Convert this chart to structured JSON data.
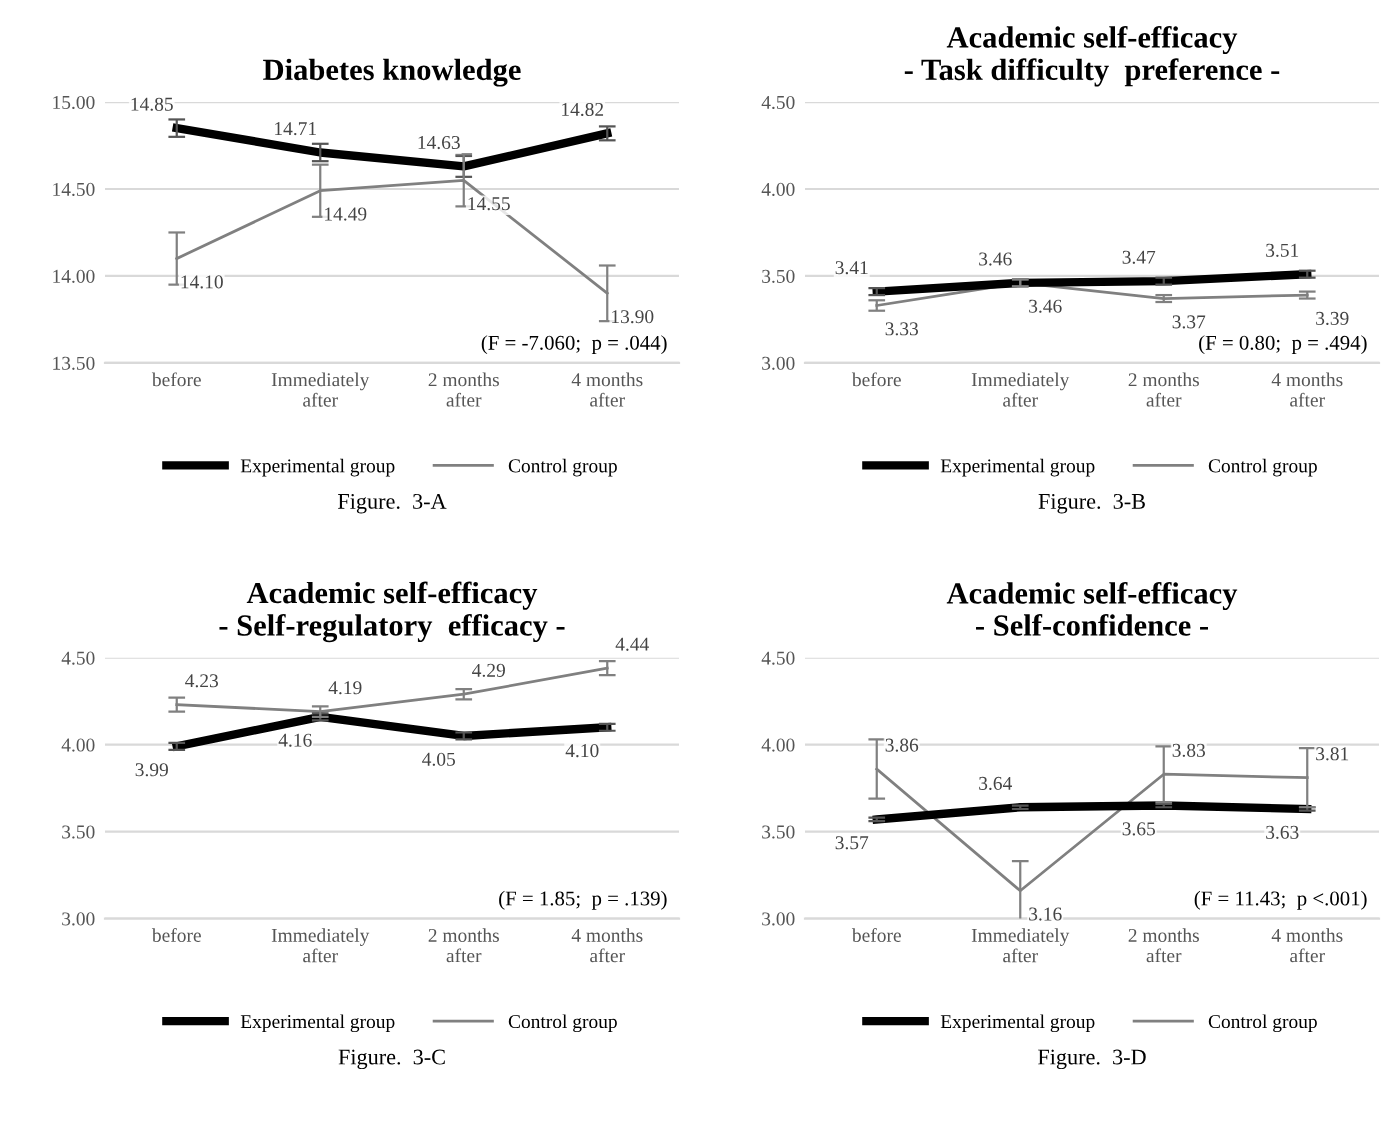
{
  "chart_data": [
    {
      "type": "line",
      "title": "Diabetes knowledge",
      "categories": [
        "before",
        "Immediately\nafter",
        "2 months\nafter",
        "4 months\nafter"
      ],
      "series": [
        {
          "name": "Experimental group",
          "color": "#000000",
          "values": [
            14.85,
            14.71,
            14.63,
            14.82
          ],
          "value_labels": [
            "14.85",
            "14.71",
            "14.63",
            "14.82"
          ],
          "errors": [
            0.05,
            0.05,
            0.06,
            0.04
          ]
        },
        {
          "name": "Control group",
          "color": "#808080",
          "values": [
            14.1,
            14.49,
            14.55,
            13.9
          ],
          "value_labels": [
            "14.10",
            "14.49",
            "14.55",
            "13.90"
          ],
          "errors": [
            0.15,
            0.15,
            0.15,
            0.16
          ]
        }
      ],
      "ylim": [
        13.5,
        15.0
      ],
      "yticks": [
        {
          "value": 13.5,
          "label": "13.50"
        },
        {
          "value": 14.0,
          "label": "14.00"
        },
        {
          "value": 14.5,
          "label": "14.50"
        },
        {
          "value": 15.0,
          "label": "15.00"
        }
      ],
      "grid": "y",
      "legend": "bottom",
      "marker": "none",
      "line_style": "solid",
      "annotations": [
        "(F = -7.060;  p = .044)",
        "Figure.  3-A"
      ]
    },
    {
      "type": "line",
      "title": "Academic self-efficacy",
      "subtitle": "- Task difficulty  preference -",
      "categories": [
        "before",
        "Immediately\nafter",
        "2 months\nafter",
        "4 months\nafter"
      ],
      "series": [
        {
          "name": "Experimental group",
          "color": "#000000",
          "values": [
            3.41,
            3.46,
            3.47,
            3.51
          ],
          "value_labels": [
            "3.41",
            "3.46",
            "3.47",
            "3.51"
          ],
          "errors": [
            0.02,
            0.02,
            0.02,
            0.02
          ]
        },
        {
          "name": "Control group",
          "color": "#808080",
          "values": [
            3.33,
            3.46,
            3.37,
            3.39
          ],
          "value_labels": [
            "3.33",
            "3.46",
            "3.37",
            "3.39"
          ],
          "errors": [
            0.03,
            0.02,
            0.02,
            0.02
          ]
        }
      ],
      "ylim": [
        3.0,
        4.5
      ],
      "yticks": [
        {
          "value": 3.0,
          "label": "3.00"
        },
        {
          "value": 3.5,
          "label": "3.50"
        },
        {
          "value": 4.0,
          "label": "4.00"
        },
        {
          "value": 4.5,
          "label": "4.50"
        }
      ],
      "grid": "y",
      "legend": "bottom",
      "marker": "none",
      "line_style": "solid",
      "annotations": [
        "(F = 0.80;  p = .494)",
        "Figure.  3-B"
      ]
    },
    {
      "type": "line",
      "title": "Academic self-efficacy",
      "subtitle": "- Self-regulatory  efficacy -",
      "categories": [
        "before",
        "Immediately\nafter",
        "2 months\nafter",
        "4 months\nafter"
      ],
      "series": [
        {
          "name": "Experimental group",
          "color": "#000000",
          "values": [
            3.99,
            4.16,
            4.05,
            4.1
          ],
          "value_labels": [
            "3.99",
            "4.16",
            "4.05",
            "4.10"
          ],
          "errors": [
            0.02,
            0.02,
            0.02,
            0.02
          ]
        },
        {
          "name": "Control group",
          "color": "#808080",
          "values": [
            4.23,
            4.19,
            4.29,
            4.44
          ],
          "value_labels": [
            "4.23",
            "4.19",
            "4.29",
            "4.44"
          ],
          "errors": [
            0.04,
            0.03,
            0.03,
            0.04
          ]
        }
      ],
      "ylim": [
        3.0,
        4.5
      ],
      "yticks": [
        {
          "value": 3.0,
          "label": "3.00"
        },
        {
          "value": 3.5,
          "label": "3.50"
        },
        {
          "value": 4.0,
          "label": "4.00"
        },
        {
          "value": 4.5,
          "label": "4.50"
        }
      ],
      "grid": "y",
      "legend": "bottom",
      "marker": "none",
      "line_style": "solid",
      "annotations": [
        "(F = 1.85;  p = .139)",
        "Figure.  3-C"
      ]
    },
    {
      "type": "line",
      "title": "Academic self-efficacy",
      "subtitle": "- Self-confidence -",
      "categories": [
        "before",
        "Immediately\nafter",
        "2 months\nafter",
        "4 months\nafter"
      ],
      "series": [
        {
          "name": "Experimental group",
          "color": "#000000",
          "values": [
            3.57,
            3.64,
            3.65,
            3.63
          ],
          "value_labels": [
            "3.57",
            "3.64",
            "3.65",
            "3.63"
          ],
          "errors": [
            0.01,
            0.01,
            0.01,
            0.01
          ]
        },
        {
          "name": "Control group",
          "color": "#808080",
          "values": [
            3.86,
            3.16,
            3.83,
            3.81
          ],
          "value_labels": [
            "3.86",
            "3.16",
            "3.83",
            "3.81"
          ],
          "errors": [
            0.17,
            0.17,
            0.16,
            0.17
          ]
        }
      ],
      "ylim": [
        3.0,
        4.5
      ],
      "yticks": [
        {
          "value": 3.0,
          "label": "3.00"
        },
        {
          "value": 3.5,
          "label": "3.50"
        },
        {
          "value": 4.0,
          "label": "4.00"
        },
        {
          "value": 4.5,
          "label": "4.50"
        }
      ],
      "grid": "y",
      "legend": "bottom",
      "marker": "none",
      "line_style": "solid",
      "annotations": [
        "(F = 11.43;  p <.001)",
        "Figure.  3-D"
      ]
    }
  ]
}
